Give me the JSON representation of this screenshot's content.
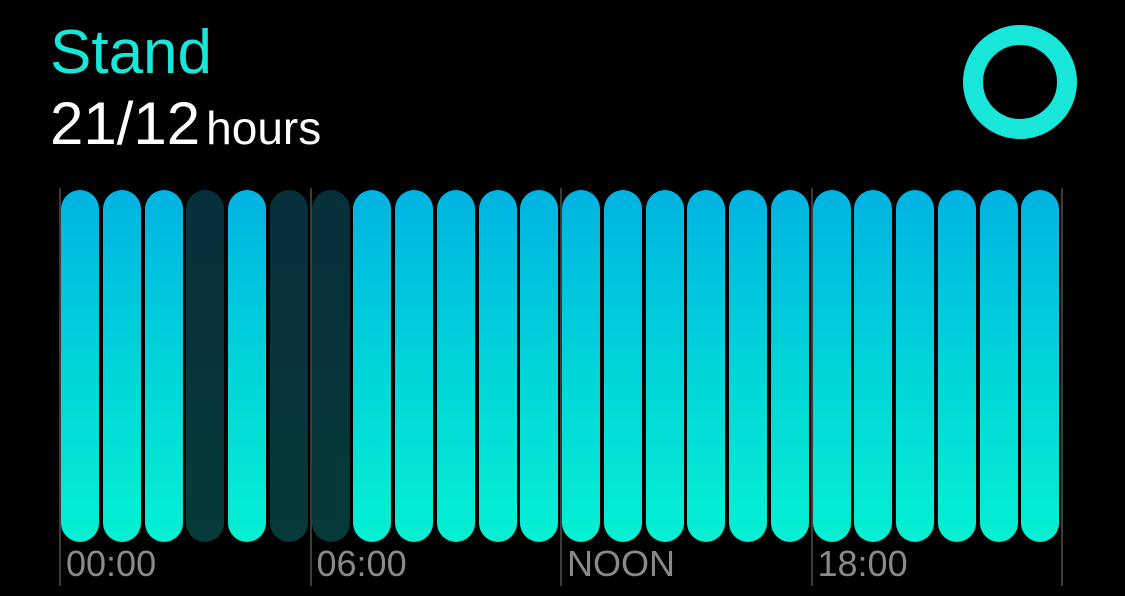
{
  "header": {
    "title": "Stand",
    "progress_value": "21/12",
    "progress_unit": "hours"
  },
  "goal_ring": {
    "icon": "arrow-up-icon",
    "goal_fraction": 1.0
  },
  "chart_data": {
    "type": "bar",
    "categories": [
      "00",
      "01",
      "02",
      "03",
      "04",
      "05",
      "06",
      "07",
      "08",
      "09",
      "10",
      "11",
      "12",
      "13",
      "14",
      "15",
      "16",
      "17",
      "18",
      "19",
      "20",
      "21",
      "22",
      "23"
    ],
    "values": [
      1,
      1,
      1,
      0,
      1,
      0,
      0,
      1,
      1,
      1,
      1,
      1,
      1,
      1,
      1,
      1,
      1,
      1,
      1,
      1,
      1,
      1,
      1,
      1
    ],
    "tick_labels": [
      "00:00",
      "06:00",
      "NOON",
      "18:00"
    ],
    "colors": {
      "stood": "#00d4d9",
      "not_stood": "#053a39",
      "accent": "#18e6d9"
    }
  }
}
